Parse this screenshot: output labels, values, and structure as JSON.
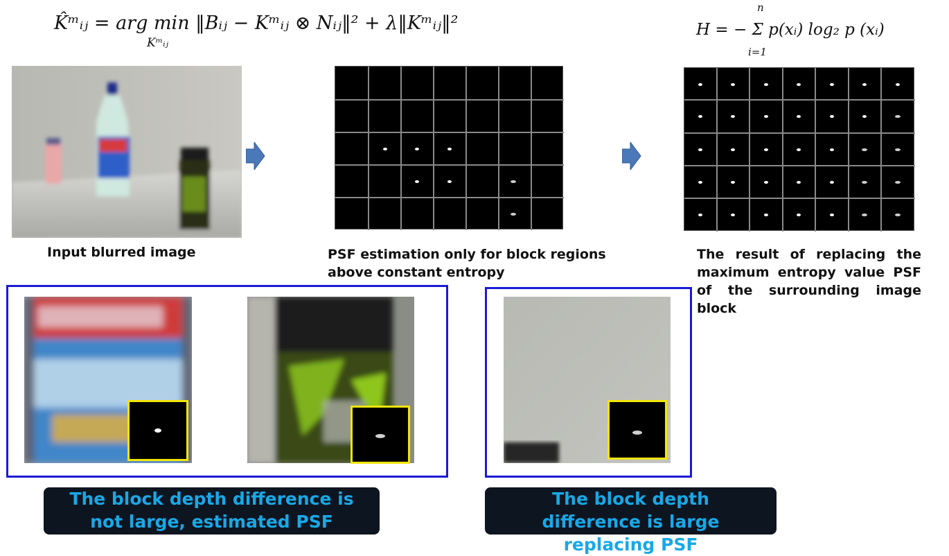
{
  "formulas": {
    "kernel": "K̂ᵐᵢⱼ = arg min ‖Bᵢⱼ − Kᵐᵢⱼ ⊗ Nᵢⱼ‖² + λ‖Kᵐᵢⱼ‖²",
    "kernel_sub": "Kᵐᵢⱼ",
    "entropy": "H = − Σ p(xᵢ) log₂ p (xᵢ)",
    "entropy_top": "n",
    "entropy_bottom": "i=1"
  },
  "captions": {
    "input": "Input blurred image",
    "estimation": "PSF estimation only for block regions above constant entropy",
    "replacing": "The result of replacing the maximum entropy value PSF of the surrounding image block"
  },
  "banners": {
    "left": "The block depth difference is not large, estimated PSF",
    "right": "The block depth difference is large replacing PSF"
  },
  "icons": [
    "arrow-right-icon",
    "arrow-right-icon"
  ],
  "colors": {
    "box_border": "#1a1ad6",
    "inset_border": "#f2e60a",
    "banner_bg": "#0d1520",
    "banner_text": "#19a8e6",
    "arrow": "#4a78b8"
  }
}
